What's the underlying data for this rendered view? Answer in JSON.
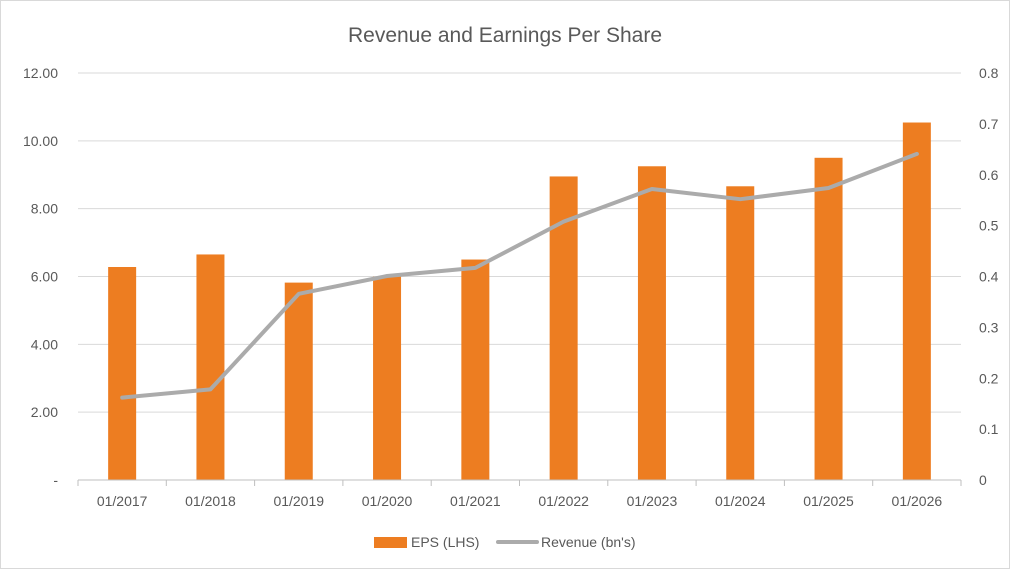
{
  "chart_data": {
    "type": "bar",
    "title": "Revenue and Earnings Per Share",
    "categories": [
      "01/2017",
      "01/2018",
      "01/2019",
      "01/2020",
      "01/2021",
      "01/2022",
      "01/2023",
      "01/2024",
      "01/2025",
      "01/2026"
    ],
    "series": [
      {
        "name": "EPS (LHS)",
        "type": "bar",
        "axis": "left",
        "color": "#ED7D21",
        "values": [
          6.28,
          6.65,
          5.82,
          6.0,
          6.5,
          8.95,
          9.25,
          8.66,
          9.5,
          10.54
        ]
      },
      {
        "name": "Revenue (bn's)",
        "type": "line",
        "axis": "right",
        "color": "#ABABAB",
        "values": [
          0.162,
          0.178,
          0.366,
          0.401,
          0.417,
          0.508,
          0.572,
          0.552,
          0.574,
          0.641
        ]
      }
    ],
    "y_left": {
      "ylim": [
        0,
        12
      ],
      "ticks": [
        0,
        2,
        4,
        6,
        8,
        10,
        12
      ],
      "tick_labels": [
        "-",
        "2.00",
        "4.00",
        "6.00",
        "8.00",
        "10.00",
        "12.00"
      ]
    },
    "y_right": {
      "ylim": [
        0,
        0.8
      ],
      "ticks": [
        0,
        0.1,
        0.2,
        0.3,
        0.4,
        0.5,
        0.6,
        0.7,
        0.8
      ],
      "tick_labels": [
        "0",
        "0.1",
        "0.2",
        "0.3",
        "0.4",
        "0.5",
        "0.6",
        "0.7",
        "0.8"
      ]
    },
    "grid": true,
    "legend": "bottom",
    "gridline_color": "#D9D9D9"
  }
}
